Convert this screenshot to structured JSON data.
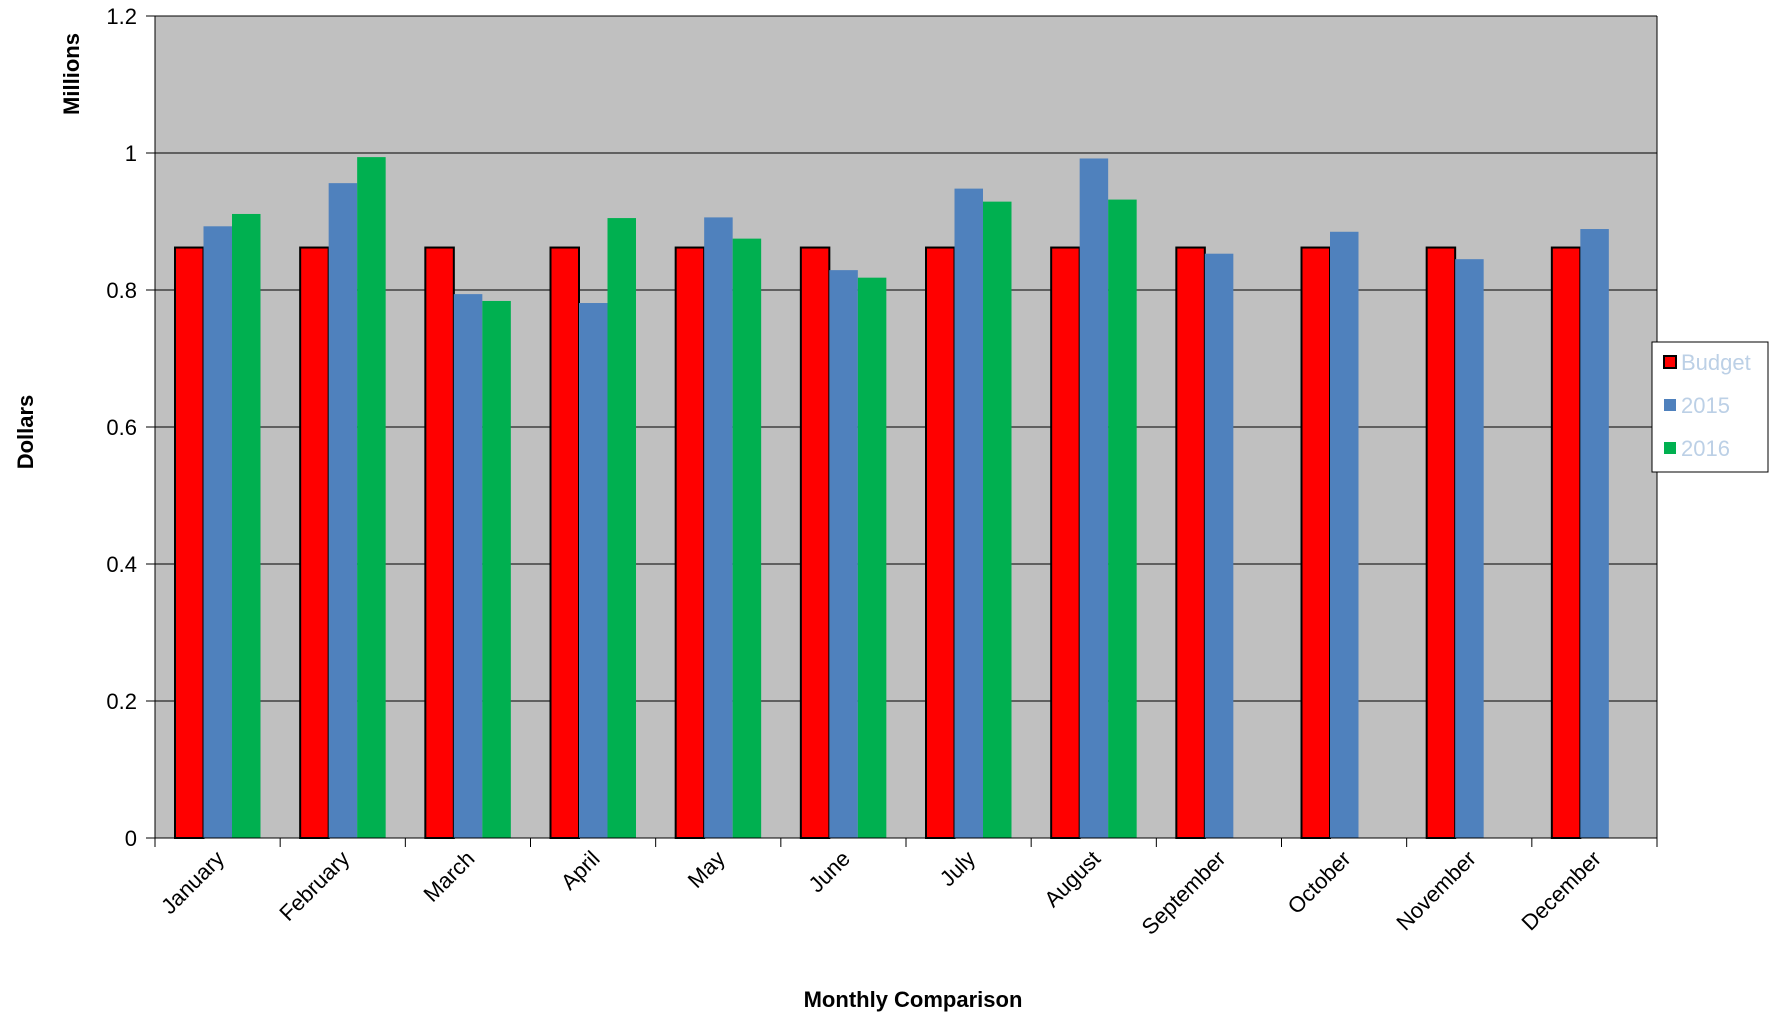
{
  "chart_data": {
    "type": "bar",
    "title": "",
    "xlabel": "Monthly Comparison",
    "ylabel": "Dollars",
    "yunit_label": "Millions",
    "ylim": [
      0,
      1.2
    ],
    "yticks": [
      0,
      0.2,
      0.4,
      0.6,
      0.8,
      1,
      1.2
    ],
    "ytick_labels": [
      "0",
      "0.2",
      "0.4",
      "0.6",
      "0.8",
      "1",
      "1.2"
    ],
    "grid": true,
    "plot_background": "#c0c0c0",
    "legend_position": "right",
    "categories": [
      "January",
      "February",
      "March",
      "April",
      "May",
      "June",
      "July",
      "August",
      "September",
      "October",
      "November",
      "December"
    ],
    "series": [
      {
        "name": "Budget",
        "color": "#ff0000",
        "outlined": true,
        "values": [
          0.862,
          0.862,
          0.862,
          0.862,
          0.862,
          0.862,
          0.862,
          0.862,
          0.862,
          0.862,
          0.862,
          0.862
        ]
      },
      {
        "name": "2015",
        "color": "#4f81bd",
        "outlined": false,
        "values": [
          0.893,
          0.956,
          0.794,
          0.781,
          0.906,
          0.829,
          0.948,
          0.992,
          0.853,
          0.885,
          0.845,
          0.889
        ]
      },
      {
        "name": "2016",
        "color": "#00b050",
        "outlined": false,
        "values": [
          0.911,
          0.994,
          0.784,
          0.905,
          0.875,
          0.818,
          0.929,
          0.932,
          null,
          null,
          null,
          null
        ]
      }
    ]
  }
}
